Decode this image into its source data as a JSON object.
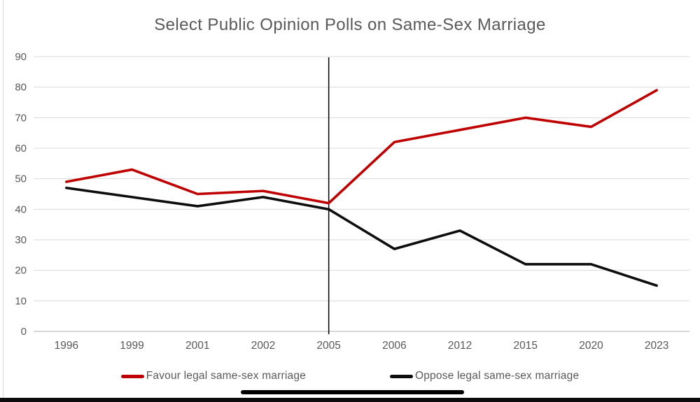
{
  "chart_data": {
    "type": "line",
    "title": "Select Public Opinion Polls on Same-Sex Marriage",
    "categories": [
      "1996",
      "1999",
      "2001",
      "2002",
      "2005",
      "2006",
      "2012",
      "2015",
      "2020",
      "2023"
    ],
    "series": [
      {
        "name": "Favour legal same-sex marriage",
        "color": "#c00000",
        "values": [
          49,
          53,
          45,
          46,
          42,
          62,
          66,
          70,
          67,
          79
        ]
      },
      {
        "name": "Oppose legal same-sex marriage",
        "color": "#0d0d0d",
        "values": [
          47,
          44,
          41,
          44,
          40,
          27,
          33,
          22,
          22,
          15
        ]
      }
    ],
    "ylim": [
      0,
      90
    ],
    "ytick_step": 10,
    "yticks": [
      "0",
      "10",
      "20",
      "30",
      "40",
      "50",
      "60",
      "70",
      "80",
      "90"
    ],
    "grid": "horizontal",
    "legend_position": "bottom",
    "annotation": {
      "type": "vertical-line",
      "at_category": "2005",
      "color": "#000000"
    }
  },
  "colors": {
    "gridline": "#d9d9d9",
    "axis_line": "#bfbfbf",
    "tick_label": "#595959",
    "title": "#595959"
  }
}
